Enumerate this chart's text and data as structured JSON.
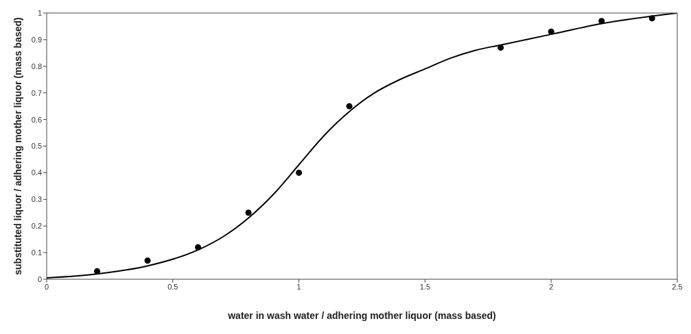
{
  "chart_data": {
    "type": "scatter",
    "xlabel": "water in wash water / adhering mother liquor  (mass based)",
    "ylabel": "substituted liquor / adhering mother liquor  (mass based)",
    "xlim": [
      0,
      2.5
    ],
    "xticks": [
      0,
      0.5,
      1,
      1.5,
      2,
      2.5
    ],
    "ylim": [
      0,
      1
    ],
    "yticks": [
      0,
      0.1,
      0.2,
      0.3,
      0.4,
      0.5,
      0.6,
      0.7,
      0.8,
      0.9,
      1
    ],
    "grid": false,
    "legend": false,
    "series": [
      {
        "color": "#000000",
        "marker": "circle",
        "x": [
          0.2,
          0.4,
          0.6,
          0.8,
          1.0,
          1.2,
          1.8,
          2.0,
          2.2,
          2.4
        ],
        "values": [
          0.03,
          0.07,
          0.12,
          0.25,
          0.4,
          0.65,
          0.87,
          0.93,
          0.97,
          0.98
        ]
      },
      {
        "type": "line",
        "color": "#000000",
        "marker": "none",
        "line_style": "solid",
        "x": [
          0,
          0.2,
          0.4,
          0.6,
          0.7,
          0.8,
          0.9,
          1.0,
          1.1,
          1.2,
          1.3,
          1.4,
          1.5,
          1.6,
          1.7,
          1.8,
          2.0,
          2.2,
          2.5
        ],
        "values": [
          0.005,
          0.02,
          0.05,
          0.11,
          0.16,
          0.23,
          0.32,
          0.43,
          0.54,
          0.63,
          0.7,
          0.75,
          0.79,
          0.83,
          0.86,
          0.88,
          0.92,
          0.96,
          1.0
        ]
      }
    ]
  }
}
